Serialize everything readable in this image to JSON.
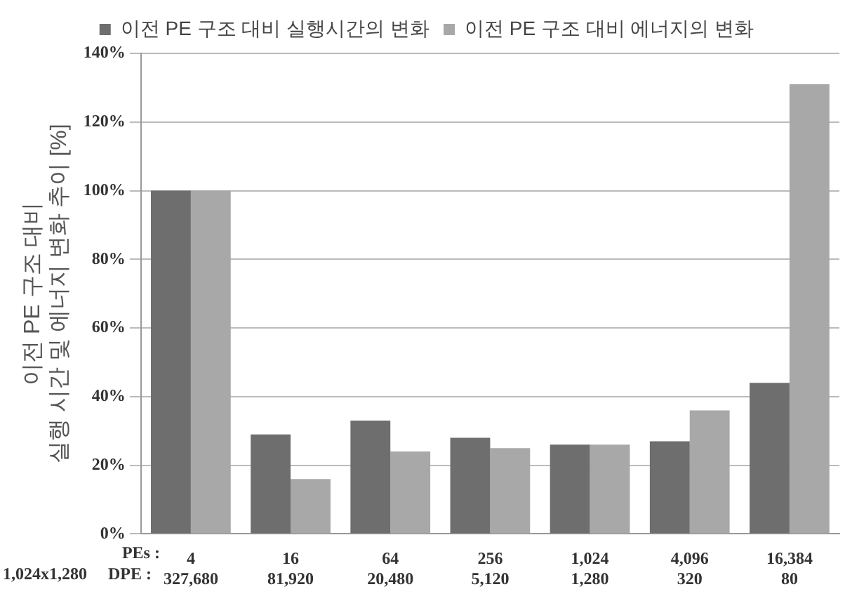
{
  "chart_data": {
    "type": "bar",
    "ylabel": "이전 PE 구조 대비\n실행 시간 및 에너지 변화 추이 [%]",
    "categories": [
      "4\n327,680",
      "16\n81,920",
      "64\n20,480",
      "256\n5,120",
      "1,024\n1,280",
      "4,096\n320",
      "16,384\n80"
    ],
    "series": [
      {
        "name": "이전 PE 구조 대비 실행시간의 변화",
        "color": "#6e6e6e",
        "values": [
          100,
          29,
          33,
          28,
          26,
          27,
          44
        ]
      },
      {
        "name": "이전 PE 구조 대비 에너지의 변화",
        "color": "#a8a8a8",
        "values": [
          100,
          16,
          24,
          25,
          26,
          36,
          131
        ]
      }
    ],
    "ylim": [
      0,
      140
    ],
    "yticks": [
      {
        "value": 0,
        "label": "0%"
      },
      {
        "value": 20,
        "label": "20%"
      },
      {
        "value": 40,
        "label": "40%"
      },
      {
        "value": 60,
        "label": "60%"
      },
      {
        "value": 80,
        "label": "80%"
      },
      {
        "value": 100,
        "label": "100%"
      },
      {
        "value": 120,
        "label": "120%"
      },
      {
        "value": 140,
        "label": "140%"
      }
    ],
    "grid": "y",
    "legend": "top",
    "annotations": [
      "PEs :",
      "DPE :",
      "1,024x1,280"
    ]
  }
}
